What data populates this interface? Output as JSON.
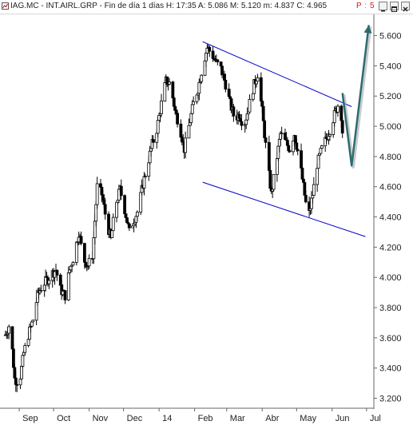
{
  "window": {
    "title": "IAG.MC - INT.AIRL.GRP - Fin de día 1 días  H: 17:35  A: 5.086  M: 5.120  m: 4.837  C: 4.965",
    "flag_p": "P",
    "flag_s": "5",
    "buttons": [
      "minimize-button",
      "maximize-button",
      "close-button"
    ]
  },
  "colors": {
    "candles": "#000000",
    "channel": "#0000cc",
    "projection": "#2c6b72",
    "flag": "#d21a1a"
  },
  "chart_data": {
    "type": "candlestick",
    "symbol": "IAG.MC",
    "name": "INT.AIRL.GRP",
    "period": "Fin de día 1 días",
    "last_quote": {
      "time": "17:35",
      "open": 5.086,
      "high": 5.12,
      "low": 4.837,
      "close": 4.965
    },
    "x_ticks": [
      "Sep",
      "Oct",
      "Nov",
      "Dec",
      "14",
      "Feb",
      "Mar",
      "Abr",
      "May",
      "Jun",
      "Jul"
    ],
    "y_ticks": [
      "5.600",
      "5.400",
      "5.200",
      "5.000",
      "4.800",
      "4.600",
      "4.400",
      "4.200",
      "4.000",
      "3.800",
      "3.600",
      "3.400",
      "3.200"
    ],
    "ylim": [
      3.15,
      5.73
    ],
    "y_axis_position": "right",
    "grid": false,
    "series": [
      {
        "x": "2013-08-20",
        "y": 3.62
      },
      {
        "x": "2013-08-24",
        "y": 3.7
      },
      {
        "x": "2013-08-28",
        "y": 3.33
      },
      {
        "x": "2013-09-01",
        "y": 3.3
      },
      {
        "x": "2013-09-05",
        "y": 3.5
      },
      {
        "x": "2013-09-09",
        "y": 3.62
      },
      {
        "x": "2013-09-13",
        "y": 3.72
      },
      {
        "x": "2013-09-17",
        "y": 3.88
      },
      {
        "x": "2013-09-21",
        "y": 3.95
      },
      {
        "x": "2013-09-25",
        "y": 3.98
      },
      {
        "x": "2013-09-29",
        "y": 4.02
      },
      {
        "x": "2013-10-03",
        "y": 4.05
      },
      {
        "x": "2013-10-07",
        "y": 3.92
      },
      {
        "x": "2013-10-11",
        "y": 3.88
      },
      {
        "x": "2013-10-15",
        "y": 4.05
      },
      {
        "x": "2013-10-19",
        "y": 4.15
      },
      {
        "x": "2013-10-23",
        "y": 4.3
      },
      {
        "x": "2013-10-27",
        "y": 4.12
      },
      {
        "x": "2013-10-31",
        "y": 4.08
      },
      {
        "x": "2013-11-04",
        "y": 4.15
      },
      {
        "x": "2013-11-08",
        "y": 4.6
      },
      {
        "x": "2013-11-12",
        "y": 4.55
      },
      {
        "x": "2013-11-16",
        "y": 4.38
      },
      {
        "x": "2013-11-20",
        "y": 4.25
      },
      {
        "x": "2013-11-24",
        "y": 4.48
      },
      {
        "x": "2013-11-28",
        "y": 4.58
      },
      {
        "x": "2013-12-02",
        "y": 4.45
      },
      {
        "x": "2013-12-06",
        "y": 4.3
      },
      {
        "x": "2013-12-10",
        "y": 4.38
      },
      {
        "x": "2013-12-14",
        "y": 4.45
      },
      {
        "x": "2013-12-18",
        "y": 4.62
      },
      {
        "x": "2013-12-22",
        "y": 4.75
      },
      {
        "x": "2013-12-26",
        "y": 4.88
      },
      {
        "x": "2013-12-30",
        "y": 4.98
      },
      {
        "x": "2014-01-03",
        "y": 5.15
      },
      {
        "x": "2014-01-07",
        "y": 5.3
      },
      {
        "x": "2014-01-11",
        "y": 5.28
      },
      {
        "x": "2014-01-15",
        "y": 5.1
      },
      {
        "x": "2014-01-19",
        "y": 5.0
      },
      {
        "x": "2014-01-23",
        "y": 4.85
      },
      {
        "x": "2014-01-27",
        "y": 5.0
      },
      {
        "x": "2014-01-31",
        "y": 5.15
      },
      {
        "x": "2014-02-04",
        "y": 5.25
      },
      {
        "x": "2014-02-08",
        "y": 5.4
      },
      {
        "x": "2014-02-12",
        "y": 5.52
      },
      {
        "x": "2014-02-16",
        "y": 5.48
      },
      {
        "x": "2014-02-20",
        "y": 5.42
      },
      {
        "x": "2014-02-24",
        "y": 5.38
      },
      {
        "x": "2014-02-28",
        "y": 5.28
      },
      {
        "x": "2014-03-04",
        "y": 5.15
      },
      {
        "x": "2014-03-08",
        "y": 5.05
      },
      {
        "x": "2014-03-12",
        "y": 5.08
      },
      {
        "x": "2014-03-16",
        "y": 5.0
      },
      {
        "x": "2014-03-20",
        "y": 5.12
      },
      {
        "x": "2014-03-24",
        "y": 5.25
      },
      {
        "x": "2014-03-28",
        "y": 5.35
      },
      {
        "x": "2014-04-01",
        "y": 5.1
      },
      {
        "x": "2014-04-05",
        "y": 4.8
      },
      {
        "x": "2014-04-09",
        "y": 4.55
      },
      {
        "x": "2014-04-13",
        "y": 4.75
      },
      {
        "x": "2014-04-17",
        "y": 4.95
      },
      {
        "x": "2014-04-21",
        "y": 4.9
      },
      {
        "x": "2014-04-25",
        "y": 4.85
      },
      {
        "x": "2014-04-29",
        "y": 4.95
      },
      {
        "x": "2014-05-03",
        "y": 4.8
      },
      {
        "x": "2014-05-07",
        "y": 4.6
      },
      {
        "x": "2014-05-11",
        "y": 4.38
      },
      {
        "x": "2014-05-15",
        "y": 4.55
      },
      {
        "x": "2014-05-19",
        "y": 4.75
      },
      {
        "x": "2014-05-23",
        "y": 4.85
      },
      {
        "x": "2014-05-27",
        "y": 4.92
      },
      {
        "x": "2014-05-31",
        "y": 5.0
      },
      {
        "x": "2014-06-04",
        "y": 5.1
      },
      {
        "x": "2014-06-08",
        "y": 5.18
      },
      {
        "x": "2014-06-10",
        "y": 4.965
      }
    ],
    "annotations": [
      {
        "type": "trendline",
        "name": "channel-upper",
        "from": {
          "x": "2014-02-08",
          "y": 5.56
        },
        "to": {
          "x": "2014-06-18",
          "y": 5.13
        }
      },
      {
        "type": "trendline",
        "name": "channel-lower",
        "from": {
          "x": "2014-02-08",
          "y": 4.63
        },
        "to": {
          "x": "2014-06-30",
          "y": 4.27
        }
      },
      {
        "type": "projection-arrow",
        "points": [
          {
            "x": "2014-06-10",
            "y": 5.22
          },
          {
            "x": "2014-06-18",
            "y": 4.74
          },
          {
            "x": "2014-07-03",
            "y": 5.67
          }
        ]
      }
    ]
  }
}
